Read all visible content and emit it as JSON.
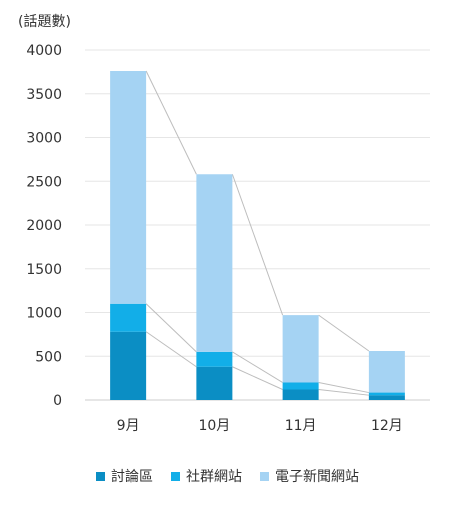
{
  "chart_data": {
    "type": "bar",
    "stacked": true,
    "unit_label": "(話題數)",
    "categories": [
      "9月",
      "10月",
      "11月",
      "12月"
    ],
    "series": [
      {
        "name": "討論區",
        "values": [
          780,
          380,
          120,
          55
        ],
        "color": "#0b8ec4"
      },
      {
        "name": "社群網站",
        "values": [
          320,
          170,
          80,
          30
        ],
        "color": "#12aee8"
      },
      {
        "name": "電子新聞網站",
        "values": [
          2660,
          2030,
          770,
          475
        ],
        "color": "#a5d3f3"
      }
    ],
    "ylim": [
      0,
      4000
    ],
    "yticks": [
      0,
      500,
      1000,
      1500,
      2000,
      2500,
      3000,
      3500,
      4000
    ],
    "grid": true,
    "connector_lines": true,
    "legend_position": "bottom"
  }
}
